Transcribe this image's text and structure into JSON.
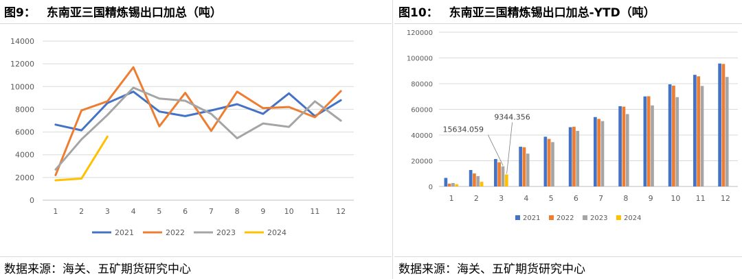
{
  "left": {
    "fig_number": "图9：",
    "fig_title": "东南亚三国精炼锡出口加总（吨）",
    "source": "数据来源：海关、五矿期货研究中心"
  },
  "right": {
    "fig_number": "图10：",
    "fig_title": "东南亚三国精炼锡出口加总-YTD（吨）",
    "source": "数据来源：海关、五矿期货研究中心"
  },
  "chart_data": [
    {
      "type": "line",
      "title": "东南亚三国精炼锡出口加总（吨）",
      "categories": [
        "1",
        "2",
        "3",
        "4",
        "5",
        "6",
        "7",
        "8",
        "9",
        "10",
        "11",
        "12"
      ],
      "ylim": [
        0,
        14000
      ],
      "yticks": [
        "0",
        "2000",
        "4000",
        "6000",
        "8000",
        "10000",
        "12000",
        "14000"
      ],
      "grid": true,
      "legend": "bottom",
      "series": [
        {
          "name": "2021",
          "color": "#4472C4",
          "values": [
            6650,
            6150,
            8550,
            9550,
            7800,
            7400,
            7900,
            8450,
            7600,
            9400,
            7400,
            8800
          ]
        },
        {
          "name": "2022",
          "color": "#ED7D31",
          "values": [
            2200,
            7900,
            8700,
            11700,
            6500,
            9450,
            6100,
            9550,
            8100,
            8200,
            7300,
            9600
          ]
        },
        {
          "name": "2023",
          "color": "#A5A5A5",
          "values": [
            2700,
            5350,
            7500,
            9900,
            8950,
            8750,
            7600,
            5450,
            6750,
            6450,
            8700,
            7000
          ]
        },
        {
          "name": "2024",
          "color": "#FFC000",
          "values": [
            1750,
            1900,
            5600,
            null,
            null,
            null,
            null,
            null,
            null,
            null,
            null,
            null
          ]
        }
      ]
    },
    {
      "type": "bar",
      "title": "东南亚三国精炼锡出口加总-YTD（吨）",
      "categories": [
        "1",
        "2",
        "3",
        "4",
        "5",
        "6",
        "7",
        "8",
        "9",
        "10",
        "11",
        "12"
      ],
      "ylim": [
        0,
        120000
      ],
      "yticks": [
        "0",
        "20000",
        "40000",
        "60000",
        "80000",
        "100000",
        "120000"
      ],
      "grid": true,
      "legend": "bottom",
      "annotations": [
        {
          "text": "15634.059",
          "category": "3",
          "series": "2023",
          "value": 15634.059
        },
        {
          "text": "9344.356",
          "category": "3",
          "series": "2024",
          "value": 9344.356
        }
      ],
      "series": [
        {
          "name": "2021",
          "color": "#4472C4",
          "values": [
            6650,
            12800,
            21350,
            30900,
            38700,
            46100,
            54000,
            62450,
            70050,
            79450,
            86850,
            95650
          ]
        },
        {
          "name": "2022",
          "color": "#ED7D31",
          "values": [
            2200,
            10100,
            18800,
            30500,
            37000,
            46450,
            52550,
            62100,
            70200,
            78400,
            85700,
            95300
          ]
        },
        {
          "name": "2023",
          "color": "#A5A5A5",
          "values": [
            2700,
            8050,
            15634.059,
            25550,
            34500,
            43250,
            50850,
            56300,
            63050,
            69500,
            78200,
            85200
          ]
        },
        {
          "name": "2024",
          "color": "#FFC000",
          "values": [
            1750,
            3650,
            9344.356,
            null,
            null,
            null,
            null,
            null,
            null,
            null,
            null,
            null
          ]
        }
      ]
    }
  ]
}
